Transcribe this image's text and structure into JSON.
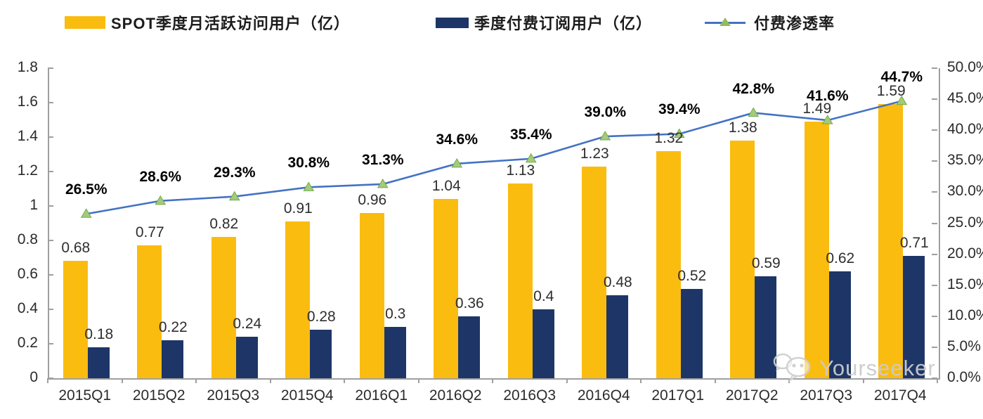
{
  "legend": {
    "items": [
      {
        "label": "SPOT季度月活跃访问用户（亿）",
        "swatch": "bar",
        "color": "#FBBC10"
      },
      {
        "label": "季度付费订阅用户（亿）",
        "swatch": "bar",
        "color": "#1D3667"
      },
      {
        "label": "付费渗透率",
        "swatch": "line-triangle",
        "line_color": "#4472C4",
        "marker_color": "#93BC5A"
      }
    ]
  },
  "watermark": {
    "text": "Yourseeker",
    "icon": "wechat-icon"
  },
  "chart_data": {
    "type": "combo_bar_line",
    "categories": [
      "2015Q1",
      "2015Q2",
      "2015Q3",
      "2015Q4",
      "2016Q1",
      "2016Q2",
      "2016Q3",
      "2016Q4",
      "2017Q1",
      "2017Q2",
      "2017Q3",
      "2017Q4"
    ],
    "series": [
      {
        "name": "SPOT季度月活跃访问用户（亿）",
        "type": "bar",
        "axis": "left",
        "color": "#FBBC10",
        "values": [
          0.68,
          0.77,
          0.82,
          0.91,
          0.96,
          1.04,
          1.13,
          1.23,
          1.32,
          1.38,
          1.49,
          1.59
        ],
        "labels": [
          "0.68",
          "0.77",
          "0.82",
          "0.91",
          "0.96",
          "1.04",
          "1.13",
          "1.23",
          "1.32",
          "1.38",
          "1.49",
          "1.59"
        ]
      },
      {
        "name": "季度付费订阅用户（亿）",
        "type": "bar",
        "axis": "left",
        "color": "#1D3667",
        "values": [
          0.18,
          0.22,
          0.24,
          0.28,
          0.3,
          0.36,
          0.4,
          0.48,
          0.52,
          0.59,
          0.62,
          0.71
        ],
        "labels": [
          "0.18",
          "0.22",
          "0.24",
          "0.28",
          "0.3",
          "0.36",
          "0.4",
          "0.48",
          "0.52",
          "0.59",
          "0.62",
          "0.71"
        ]
      },
      {
        "name": "付费渗透率",
        "type": "line",
        "axis": "right",
        "color": "#4472C4",
        "marker": "triangle-up",
        "marker_color": "#A6C97B",
        "values": [
          26.5,
          28.6,
          29.3,
          30.8,
          31.3,
          34.6,
          35.4,
          39.0,
          39.4,
          42.8,
          41.6,
          44.7
        ],
        "labels": [
          "26.5%",
          "28.6%",
          "29.3%",
          "30.8%",
          "31.3%",
          "34.6%",
          "35.4%",
          "39.0%",
          "39.4%",
          "42.8%",
          "41.6%",
          "44.7%"
        ]
      }
    ],
    "left_axis": {
      "min": 0,
      "max": 1.8,
      "tick_step": 0.2,
      "ticks": [
        "0",
        "0.2",
        "0.4",
        "0.6",
        "0.8",
        "1",
        "1.2",
        "1.4",
        "1.6",
        "1.8"
      ]
    },
    "right_axis": {
      "min": 0,
      "max": 50,
      "tick_step": 5,
      "ticks": [
        "0.0%",
        "5.0%",
        "10.0%",
        "15.0%",
        "20.0%",
        "25.0%",
        "30.0%",
        "35.0%",
        "40.0%",
        "45.0%",
        "50.0%"
      ]
    },
    "grid": false,
    "legend_position": "top",
    "title": ""
  }
}
